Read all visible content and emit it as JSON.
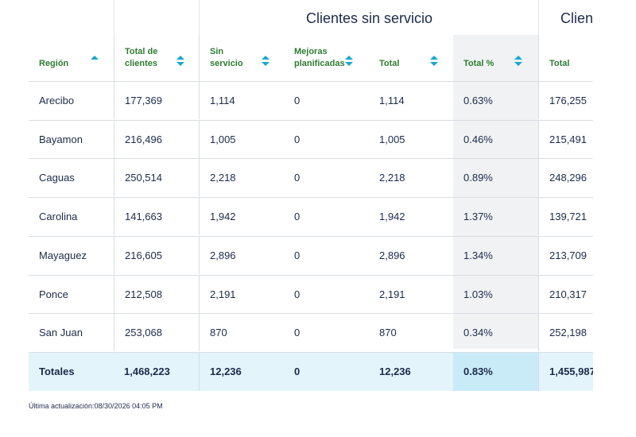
{
  "group_headers": {
    "sin_servicio": "Clientes sin servicio",
    "next_partial": "Client"
  },
  "columns": [
    {
      "key": "region",
      "label": "Región",
      "sort": "asc"
    },
    {
      "key": "total_clientes",
      "label": "Total de clientes",
      "sort": "both"
    },
    {
      "key": "sin_servicio",
      "label": "Sin servicio",
      "sort": "both"
    },
    {
      "key": "mejoras",
      "label": "Mejoras planificadas",
      "sort": "both"
    },
    {
      "key": "total",
      "label": "Total",
      "sort": "both"
    },
    {
      "key": "total_pct",
      "label": "Total %",
      "sort": "both"
    },
    {
      "key": "total_next",
      "label": "Total",
      "sort": "none"
    }
  ],
  "rows": [
    [
      "Arecibo",
      "177,369",
      "1,114",
      "0",
      "1,114",
      "0.63%",
      "176,255"
    ],
    [
      "Bayamon",
      "216,496",
      "1,005",
      "0",
      "1,005",
      "0.46%",
      "215,491"
    ],
    [
      "Caguas",
      "250,514",
      "2,218",
      "0",
      "2,218",
      "0.89%",
      "248,296"
    ],
    [
      "Carolina",
      "141,663",
      "1,942",
      "0",
      "1,942",
      "1.37%",
      "139,721"
    ],
    [
      "Mayaguez",
      "216,605",
      "2,896",
      "0",
      "2,896",
      "1.34%",
      "213,709"
    ],
    [
      "Ponce",
      "212,508",
      "2,191",
      "0",
      "2,191",
      "1.03%",
      "210,317"
    ],
    [
      "San Juan",
      "253,068",
      "870",
      "0",
      "870",
      "0.34%",
      "252,198"
    ]
  ],
  "totals": [
    "Totales",
    "1,468,223",
    "12,236",
    "0",
    "12,236",
    "0.83%",
    "1,455,987"
  ],
  "footer": {
    "last_updated": "Última actualización:08/30/2026 04:05 PM"
  },
  "colors": {
    "header_text": "#2e7d32",
    "sort_icon": "#19a7ce",
    "totals_bg": "#e3f4fb",
    "pct_col_bg": "#f0f2f4"
  }
}
